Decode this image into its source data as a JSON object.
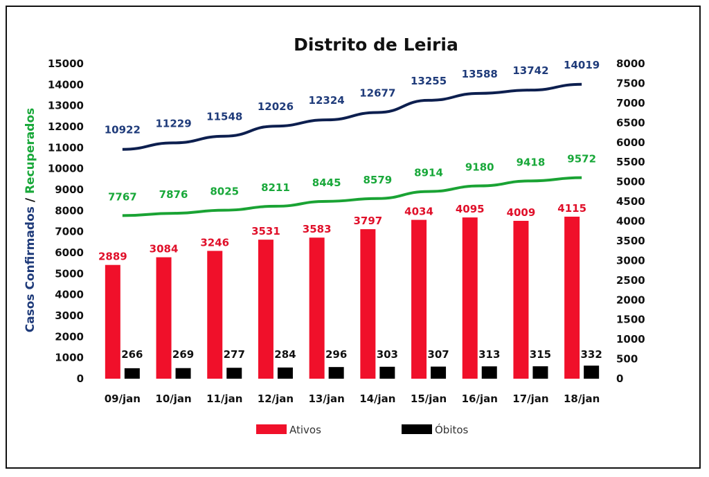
{
  "chart_data": {
    "type": "bar",
    "title": "Distrito de Leiria",
    "ylabel_left": [
      "Casos Confirmados",
      " / ",
      "Recuperados"
    ],
    "ylabel_colors": [
      "#1f3b7a",
      "#111111",
      "#19a83a"
    ],
    "categories": [
      "09/jan",
      "10/jan",
      "11/jan",
      "12/jan",
      "13/jan",
      "14/jan",
      "15/jan",
      "16/jan",
      "17/jan",
      "18/jan"
    ],
    "y_left": {
      "min": 0,
      "max": 15000,
      "step": 1000
    },
    "y_right": {
      "min": 0,
      "max": 8000,
      "step": 500
    },
    "grid": false,
    "legend_position": "bottom",
    "series": [
      {
        "name": "Casos Confirmados",
        "kind": "line",
        "axis": "left",
        "color": "#0d1f4f",
        "label_color": "#1f3b7a",
        "values": [
          10922,
          11229,
          11548,
          12026,
          12324,
          12677,
          13255,
          13588,
          13742,
          14019
        ]
      },
      {
        "name": "Recuperados",
        "kind": "line",
        "axis": "left",
        "color": "#1aa334",
        "label_color": "#19a83a",
        "values": [
          7767,
          7876,
          8025,
          8211,
          8445,
          8579,
          8914,
          9180,
          9418,
          9572
        ]
      },
      {
        "name": "Ativos",
        "kind": "bar",
        "axis": "right",
        "color": "#f0102a",
        "label_color": "#e0102a",
        "values": [
          2889,
          3084,
          3246,
          3531,
          3583,
          3797,
          4034,
          4095,
          4009,
          4115
        ]
      },
      {
        "name": "Óbitos",
        "kind": "bar",
        "axis": "right",
        "color": "#000000",
        "label_color": "#111111",
        "values": [
          266,
          269,
          277,
          284,
          296,
          303,
          307,
          313,
          315,
          332
        ]
      }
    ],
    "legend": [
      "Ativos",
      "Óbitos"
    ]
  }
}
